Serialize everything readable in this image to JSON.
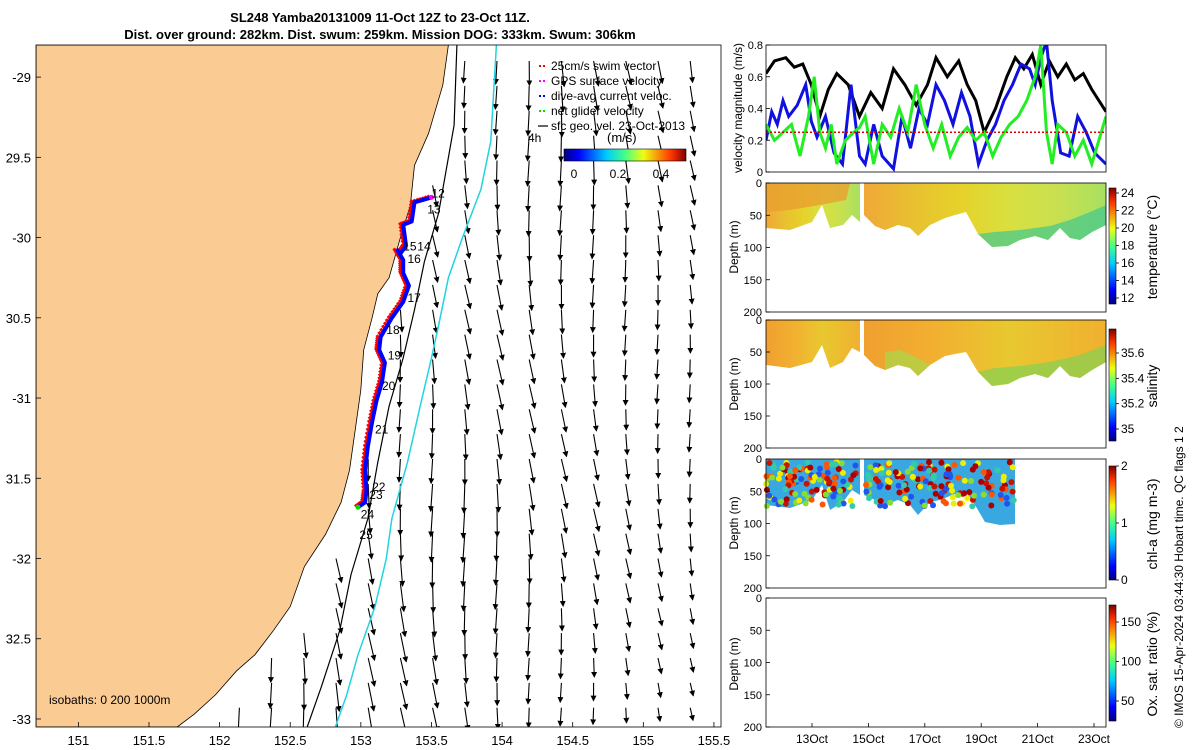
{
  "figure": {
    "title_line1": "SL248 Yamba20131009 11-Oct 12Z to 23-Oct 11Z.",
    "title_line2": "Dist. over ground: 282km. Dist. swum: 259km. Mission DOG: 333km. Swum: 306km",
    "credit": "© IMOS 15-Apr-2024 03:44:30 Hobart time. QC flags 1  2"
  },
  "colors": {
    "land": "#FBCB94",
    "glider_track": "#0000ff",
    "swim_vector": "#ff0000",
    "gps_velocity": "#ff00ff",
    "net_velocity": "#00e000",
    "contour_200": "#000000",
    "contour_1000": "#22d3e0",
    "velocity_black": "#000000",
    "velocity_blue": "#1010e0",
    "velocity_green": "#22ee22",
    "velocity_red_dashed": "#e00000"
  },
  "chart_data": [
    {
      "id": "map",
      "type": "scatter",
      "xlim": [
        150.7,
        155.55
      ],
      "ylim": [
        -33.05,
        -28.8
      ],
      "y_reversed_display": true,
      "x_ticks": [
        151,
        151.5,
        152,
        152.5,
        153,
        153.5,
        154,
        154.5,
        155,
        155.5
      ],
      "x_tick_labels": [
        "151",
        "151.5",
        "152",
        "152.5",
        "153",
        "153.5",
        "154",
        "154.5",
        "155",
        "155.5"
      ],
      "y_ticks": [
        -29,
        -29.5,
        -30,
        -30.5,
        -31,
        -31.5,
        -32,
        -32.5,
        -33
      ],
      "y_tick_labels": [
        "-29",
        "29.5",
        "-30",
        "30.5",
        "-31",
        "31.5",
        "-32",
        "32.5",
        "-33"
      ],
      "legend": {
        "placement": "top-right",
        "entries": [
          {
            "label": "25cm/s swim vector",
            "color": "#ff0000",
            "style": "dots"
          },
          {
            "label": "GPS surface velocity",
            "color": "#ff00ff",
            "style": "dots"
          },
          {
            "label": "dive-avg current veloc.",
            "color": "#0000ff",
            "style": "dots"
          },
          {
            "label": "net glider velocity",
            "color": "#00e000",
            "style": "dots"
          },
          {
            "label": "sfc geo. vel. 23-Oct-2013",
            "color": "#000000",
            "style": "line"
          }
        ]
      },
      "colorbar": {
        "label": "(m/s)",
        "ticks": [
          0,
          0.2,
          0.4
        ],
        "tick_labels": [
          "0",
          "0.2",
          "0.4"
        ],
        "range": [
          0,
          0.55
        ]
      },
      "scale_label": "4h",
      "isobaths_label": "isobaths: 0   200  1000m",
      "day_labels": [
        {
          "label": "12",
          "lon": 153.5,
          "lat": -29.75
        },
        {
          "label": "13",
          "lon": 153.47,
          "lat": -29.85
        },
        {
          "label": "14",
          "lon": 153.4,
          "lat": -30.08
        },
        {
          "label": "15",
          "lon": 153.3,
          "lat": -30.08
        },
        {
          "label": "16",
          "lon": 153.33,
          "lat": -30.16
        },
        {
          "label": "17",
          "lon": 153.33,
          "lat": -30.4
        },
        {
          "label": "18",
          "lon": 153.18,
          "lat": -30.6
        },
        {
          "label": "19",
          "lon": 153.19,
          "lat": -30.76
        },
        {
          "label": "20",
          "lon": 153.15,
          "lat": -30.95
        },
        {
          "label": "21",
          "lon": 153.1,
          "lat": -31.22
        },
        {
          "label": "22",
          "lon": 153.08,
          "lat": -31.58
        },
        {
          "label": "23",
          "lon": 153.06,
          "lat": -31.63
        },
        {
          "label": "24",
          "lon": 153.0,
          "lat": -31.75
        },
        {
          "label": "25",
          "lon": 152.99,
          "lat": -31.88
        }
      ],
      "track": [
        [
          153.5,
          -29.75
        ],
        [
          153.38,
          -29.78
        ],
        [
          153.36,
          -29.9
        ],
        [
          153.3,
          -29.92
        ],
        [
          153.32,
          -30.05
        ],
        [
          153.28,
          -30.1
        ],
        [
          153.26,
          -30.08
        ],
        [
          153.3,
          -30.14
        ],
        [
          153.3,
          -30.22
        ],
        [
          153.34,
          -30.3
        ],
        [
          153.3,
          -30.4
        ],
        [
          153.22,
          -30.5
        ],
        [
          153.14,
          -30.62
        ],
        [
          153.13,
          -30.7
        ],
        [
          153.17,
          -30.78
        ],
        [
          153.15,
          -30.9
        ],
        [
          153.11,
          -31.02
        ],
        [
          153.08,
          -31.15
        ],
        [
          153.05,
          -31.3
        ],
        [
          153.03,
          -31.45
        ],
        [
          153.04,
          -31.58
        ],
        [
          153.03,
          -31.65
        ],
        [
          152.98,
          -31.68
        ]
      ],
      "contour_200": [
        [
          153.68,
          -28.8
        ],
        [
          153.66,
          -29.3
        ],
        [
          153.6,
          -29.6
        ],
        [
          153.55,
          -29.85
        ],
        [
          153.45,
          -30.15
        ],
        [
          153.38,
          -30.45
        ],
        [
          153.3,
          -30.75
        ],
        [
          153.2,
          -31.05
        ],
        [
          153.12,
          -31.4
        ],
        [
          153.05,
          -31.75
        ],
        [
          152.93,
          -32.1
        ],
        [
          152.85,
          -32.45
        ],
        [
          152.72,
          -32.8
        ],
        [
          152.62,
          -33.05
        ]
      ],
      "contour_1000": [
        [
          153.96,
          -28.8
        ],
        [
          153.92,
          -29.4
        ],
        [
          153.85,
          -29.7
        ],
        [
          153.72,
          -30.0
        ],
        [
          153.62,
          -30.25
        ],
        [
          153.55,
          -30.55
        ],
        [
          153.5,
          -30.75
        ],
        [
          153.42,
          -31.05
        ],
        [
          153.33,
          -31.4
        ],
        [
          153.22,
          -31.75
        ],
        [
          153.18,
          -32.0
        ],
        [
          153.1,
          -32.3
        ],
        [
          152.98,
          -32.6
        ],
        [
          152.9,
          -32.85
        ],
        [
          152.82,
          -33.05
        ]
      ],
      "coast": [
        [
          153.62,
          -28.8
        ],
        [
          153.58,
          -29.05
        ],
        [
          153.48,
          -29.35
        ],
        [
          153.38,
          -29.55
        ],
        [
          153.35,
          -29.8
        ],
        [
          153.28,
          -30.0
        ],
        [
          153.2,
          -30.25
        ],
        [
          153.12,
          -30.35
        ],
        [
          153.08,
          -30.5
        ],
        [
          153.02,
          -30.7
        ],
        [
          153.0,
          -30.95
        ],
        [
          152.96,
          -31.2
        ],
        [
          152.92,
          -31.45
        ],
        [
          152.86,
          -31.65
        ],
        [
          152.75,
          -31.85
        ],
        [
          152.6,
          -32.05
        ],
        [
          152.5,
          -32.3
        ],
        [
          152.38,
          -32.45
        ],
        [
          152.25,
          -32.6
        ],
        [
          152.12,
          -32.7
        ],
        [
          151.97,
          -32.85
        ],
        [
          151.82,
          -32.97
        ],
        [
          151.7,
          -33.05
        ]
      ]
    },
    {
      "id": "velocity",
      "type": "line",
      "ylabel": "velocity magnitude (m/s)",
      "ylim": [
        0,
        0.8
      ],
      "y_ticks": [
        0,
        0.2,
        0.4,
        0.6,
        0.8
      ],
      "xlim": [
        11.5,
        23.5
      ],
      "series": [
        {
          "color": "#000000",
          "x": [
            11.5,
            11.8,
            12.2,
            12.5,
            12.8,
            13.1,
            13.4,
            13.7,
            14.0,
            14.4,
            14.8,
            15.2,
            15.6,
            16.0,
            16.4,
            16.8,
            17.2,
            17.5,
            17.9,
            18.3,
            18.6,
            18.9,
            19.2,
            19.6,
            20.0,
            20.3,
            20.6,
            20.9,
            21.2,
            21.5,
            21.8,
            22.1,
            22.4,
            22.7,
            23.0,
            23.5
          ],
          "values": [
            0.62,
            0.7,
            0.72,
            0.66,
            0.68,
            0.55,
            0.35,
            0.52,
            0.62,
            0.55,
            0.35,
            0.5,
            0.4,
            0.65,
            0.55,
            0.42,
            0.55,
            0.72,
            0.6,
            0.7,
            0.55,
            0.45,
            0.25,
            0.4,
            0.6,
            0.72,
            0.65,
            0.74,
            0.55,
            0.7,
            0.6,
            0.68,
            0.58,
            0.62,
            0.52,
            0.38
          ]
        },
        {
          "color": "#1010e0",
          "x": [
            11.5,
            11.7,
            11.9,
            12.1,
            12.3,
            12.6,
            12.9,
            13.1,
            13.3,
            13.6,
            13.9,
            14.2,
            14.5,
            14.8,
            15.0,
            15.3,
            15.6,
            16.0,
            16.3,
            16.6,
            16.9,
            17.2,
            17.5,
            17.8,
            18.1,
            18.4,
            18.7,
            19.0,
            19.3,
            19.6,
            19.9,
            20.2,
            20.5,
            20.8,
            21.0,
            21.2,
            21.4,
            21.6,
            21.9,
            22.2,
            22.5,
            22.8,
            23.1,
            23.5
          ],
          "values": [
            0.2,
            0.38,
            0.3,
            0.45,
            0.35,
            0.42,
            0.55,
            0.32,
            0.22,
            0.35,
            0.12,
            0.05,
            0.55,
            0.1,
            0.05,
            0.3,
            0.1,
            0.02,
            0.35,
            0.15,
            0.4,
            0.3,
            0.55,
            0.45,
            0.3,
            0.5,
            0.35,
            0.05,
            0.2,
            0.3,
            0.45,
            0.55,
            0.68,
            0.65,
            0.55,
            0.72,
            0.82,
            0.45,
            0.12,
            0.1,
            0.35,
            0.25,
            0.12,
            0.05
          ]
        },
        {
          "color": "#22ee22",
          "x": [
            11.5,
            11.8,
            12.1,
            12.4,
            12.7,
            13.0,
            13.2,
            13.4,
            13.6,
            13.8,
            14.0,
            14.3,
            14.6,
            14.8,
            15.0,
            15.3,
            15.6,
            15.9,
            16.2,
            16.5,
            16.8,
            17.1,
            17.4,
            17.7,
            18.0,
            18.3,
            18.6,
            18.9,
            19.2,
            19.5,
            19.8,
            20.1,
            20.4,
            20.7,
            21.0,
            21.2,
            21.4,
            21.6,
            21.8,
            22.1,
            22.4,
            22.7,
            23.0,
            23.5
          ],
          "values": [
            0.3,
            0.2,
            0.25,
            0.3,
            0.1,
            0.35,
            0.6,
            0.25,
            0.15,
            0.3,
            0.05,
            0.2,
            0.25,
            0.28,
            0.35,
            0.05,
            0.3,
            0.22,
            0.4,
            0.25,
            0.55,
            0.3,
            0.15,
            0.3,
            0.1,
            0.22,
            0.28,
            0.2,
            0.25,
            0.1,
            0.22,
            0.3,
            0.35,
            0.45,
            0.6,
            0.8,
            0.25,
            0.05,
            0.3,
            0.25,
            0.1,
            0.2,
            0.05,
            0.35
          ]
        },
        {
          "color": "#e00000",
          "dashed": true,
          "x": [
            11.5,
            23.5
          ],
          "values": [
            0.25,
            0.25
          ]
        }
      ]
    },
    {
      "id": "temperature",
      "type": "heatmap",
      "ylabel": "Depth (m)",
      "y_ticks": [
        0,
        50,
        100,
        150,
        200
      ],
      "colorbar_label": "temperature (°C)",
      "colorbar_ticks": [
        "24",
        "22",
        "20",
        "18",
        "16",
        "14",
        "12"
      ],
      "colormap": "parula-jet"
    },
    {
      "id": "salinity",
      "type": "heatmap",
      "ylabel": "Depth (m)",
      "y_ticks": [
        0,
        50,
        100,
        150,
        200
      ],
      "colorbar_label": "salinity",
      "colorbar_ticks": [
        "35.6",
        "35.4",
        "35.2",
        "35"
      ],
      "colormap": "parula-jet"
    },
    {
      "id": "chlorophyll",
      "type": "heatmap",
      "ylabel": "Depth (m)",
      "y_ticks": [
        0,
        50,
        100,
        150,
        200
      ],
      "colorbar_label": "chl-a (mg m-3)",
      "colorbar_ticks": [
        "2",
        "1",
        "0"
      ],
      "colormap": "parula-jet"
    },
    {
      "id": "oxygen",
      "type": "heatmap",
      "ylabel": "Depth (m)",
      "y_ticks": [
        0,
        50,
        100,
        150,
        200
      ],
      "colorbar_label": "Ox. sat. ratio (%)",
      "colorbar_ticks": [
        "150",
        "100",
        "50"
      ],
      "colormap": "parula-jet",
      "x_tick_labels": [
        "13Oct",
        "15Oct",
        "17Oct",
        "19Oct",
        "21Oct",
        "23Oct"
      ]
    }
  ]
}
